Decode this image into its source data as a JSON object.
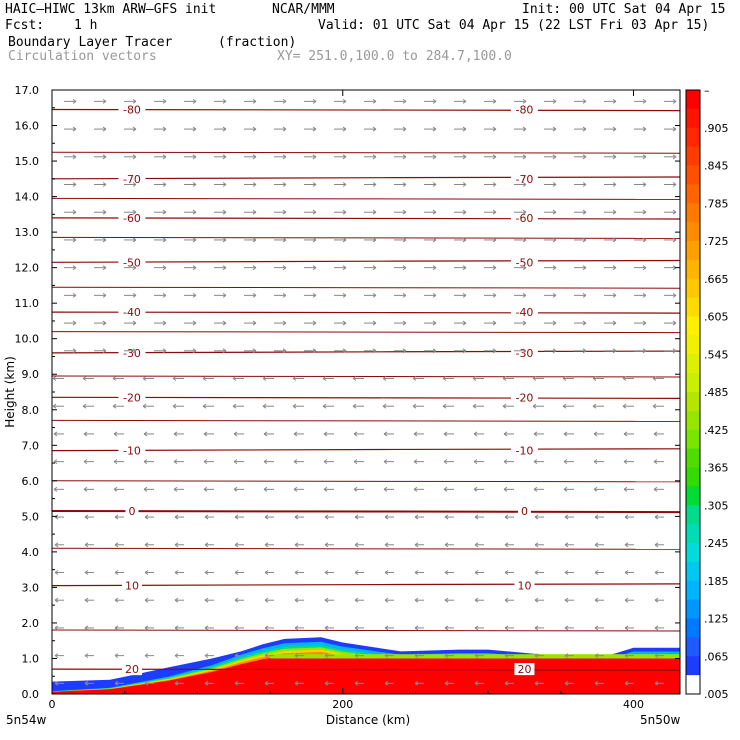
{
  "header": {
    "model": "HAIC–HIWC 13km ARW–GFS init",
    "org": "NCAR/MMM",
    "init": "Init: 00 UTC Sat 04 Apr 15",
    "fcst_label": "Fcst:",
    "fcst_value": "1 h",
    "valid": "Valid: 01 UTC Sat 04 Apr 15 (22 LST Fri 03 Apr 15)",
    "field1": "Boundary Layer Tracer",
    "field1_units": "(fraction)",
    "field2": "Circulation vectors",
    "xy_range": "XY= 251.0,100.0 to 284.7,100.0"
  },
  "axes": {
    "ylabel": "Height (km)",
    "xlabel": "Distance (km)",
    "left_point": "5n54w",
    "right_point": "5n50w"
  },
  "colors": {
    "contour": "#8b0a0a",
    "vector": "#888888",
    "tracer_stops": [
      "#ffffff",
      "#1e3cff",
      "#00b4ff",
      "#00dcdc",
      "#00dc8c",
      "#32dc00",
      "#96e600",
      "#dcf000",
      "#ffd200",
      "#ffa000",
      "#ff6400",
      "#ff2800",
      "#ff0000"
    ]
  },
  "chart_data": {
    "type": "cross-section",
    "title": "Boundary Layer Tracer",
    "xlabel": "Distance (km)",
    "ylabel": "Height (km)",
    "xlim": [
      0,
      432
    ],
    "ylim": [
      0,
      17
    ],
    "xticks": [
      0,
      200,
      400
    ],
    "xtick_labels": [
      "0",
      "200",
      "400"
    ],
    "yticks": [
      0,
      1,
      2,
      3,
      4,
      5,
      6,
      7,
      8,
      9,
      10,
      11,
      12,
      13,
      14,
      15,
      16,
      17
    ],
    "ytick_labels": [
      "0.0",
      "1.0",
      "2.0",
      "3.0",
      "4.0",
      "5.0",
      "6.0",
      "7.0",
      "8.0",
      "9.0",
      "10.0",
      "11.0",
      "12.0",
      "13.0",
      "14.0",
      "15.0",
      "16.0",
      "17.0"
    ],
    "colorbar": {
      "labels": [
        "–",
        ".905",
        ".845",
        ".785",
        ".725",
        ".665",
        ".605",
        ".545",
        ".485",
        ".425",
        ".365",
        ".305",
        ".245",
        ".185",
        ".125",
        ".065",
        ".005"
      ]
    },
    "temperature_contours": [
      {
        "label": "-80",
        "z": 16.45
      },
      {
        "label": "-70",
        "z": 14.5
      },
      {
        "label": "-60",
        "z": 13.4
      },
      {
        "label": "-50",
        "z": 12.15
      },
      {
        "label": "-40",
        "z": 10.75
      },
      {
        "label": "-30",
        "z": 9.6
      },
      {
        "label": "-20",
        "z": 8.35
      },
      {
        "label": "-10",
        "z": 6.85
      },
      {
        "label": "0",
        "z": 5.15
      },
      {
        "label": "10",
        "z": 3.05
      },
      {
        "label": "20",
        "z": 0.7
      }
    ],
    "tracer_top_km": [
      [
        0,
        0.35
      ],
      [
        40,
        0.4
      ],
      [
        80,
        0.75
      ],
      [
        110,
        1.0
      ],
      [
        130,
        1.2
      ],
      [
        145,
        1.4
      ],
      [
        160,
        1.55
      ],
      [
        185,
        1.6
      ],
      [
        200,
        1.45
      ],
      [
        240,
        1.2
      ],
      [
        280,
        1.25
      ],
      [
        300,
        1.25
      ],
      [
        340,
        1.1
      ],
      [
        380,
        1.05
      ],
      [
        400,
        1.3
      ],
      [
        432,
        1.3
      ]
    ]
  }
}
